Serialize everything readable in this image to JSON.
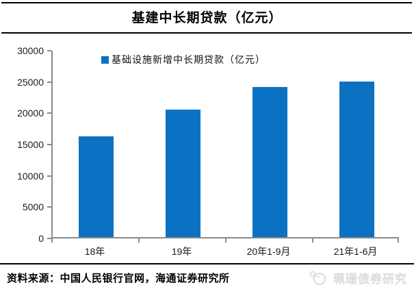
{
  "title": "基建中长期贷款（亿元）",
  "chart_data": {
    "type": "bar",
    "title": "基建中长期贷款（亿元）",
    "legend": "基础设施新增中长期贷款（亿元）",
    "legend_position": "top",
    "categories": [
      "18年",
      "19年",
      "20年1-9月",
      "21年1-6月"
    ],
    "values": [
      16100,
      20400,
      24000,
      24900
    ],
    "xlabel": "",
    "ylabel": "",
    "ylim": [
      0,
      30000
    ],
    "yticks": [
      0,
      5000,
      10000,
      15000,
      20000,
      25000,
      30000
    ],
    "grid": false,
    "bar_color": "#0b72c3",
    "axis_color": "#8a8a8a"
  },
  "footer": {
    "source": "资料来源：中国人民银行官网，海通证券研究所",
    "watermark": "珮珊债券研究"
  }
}
